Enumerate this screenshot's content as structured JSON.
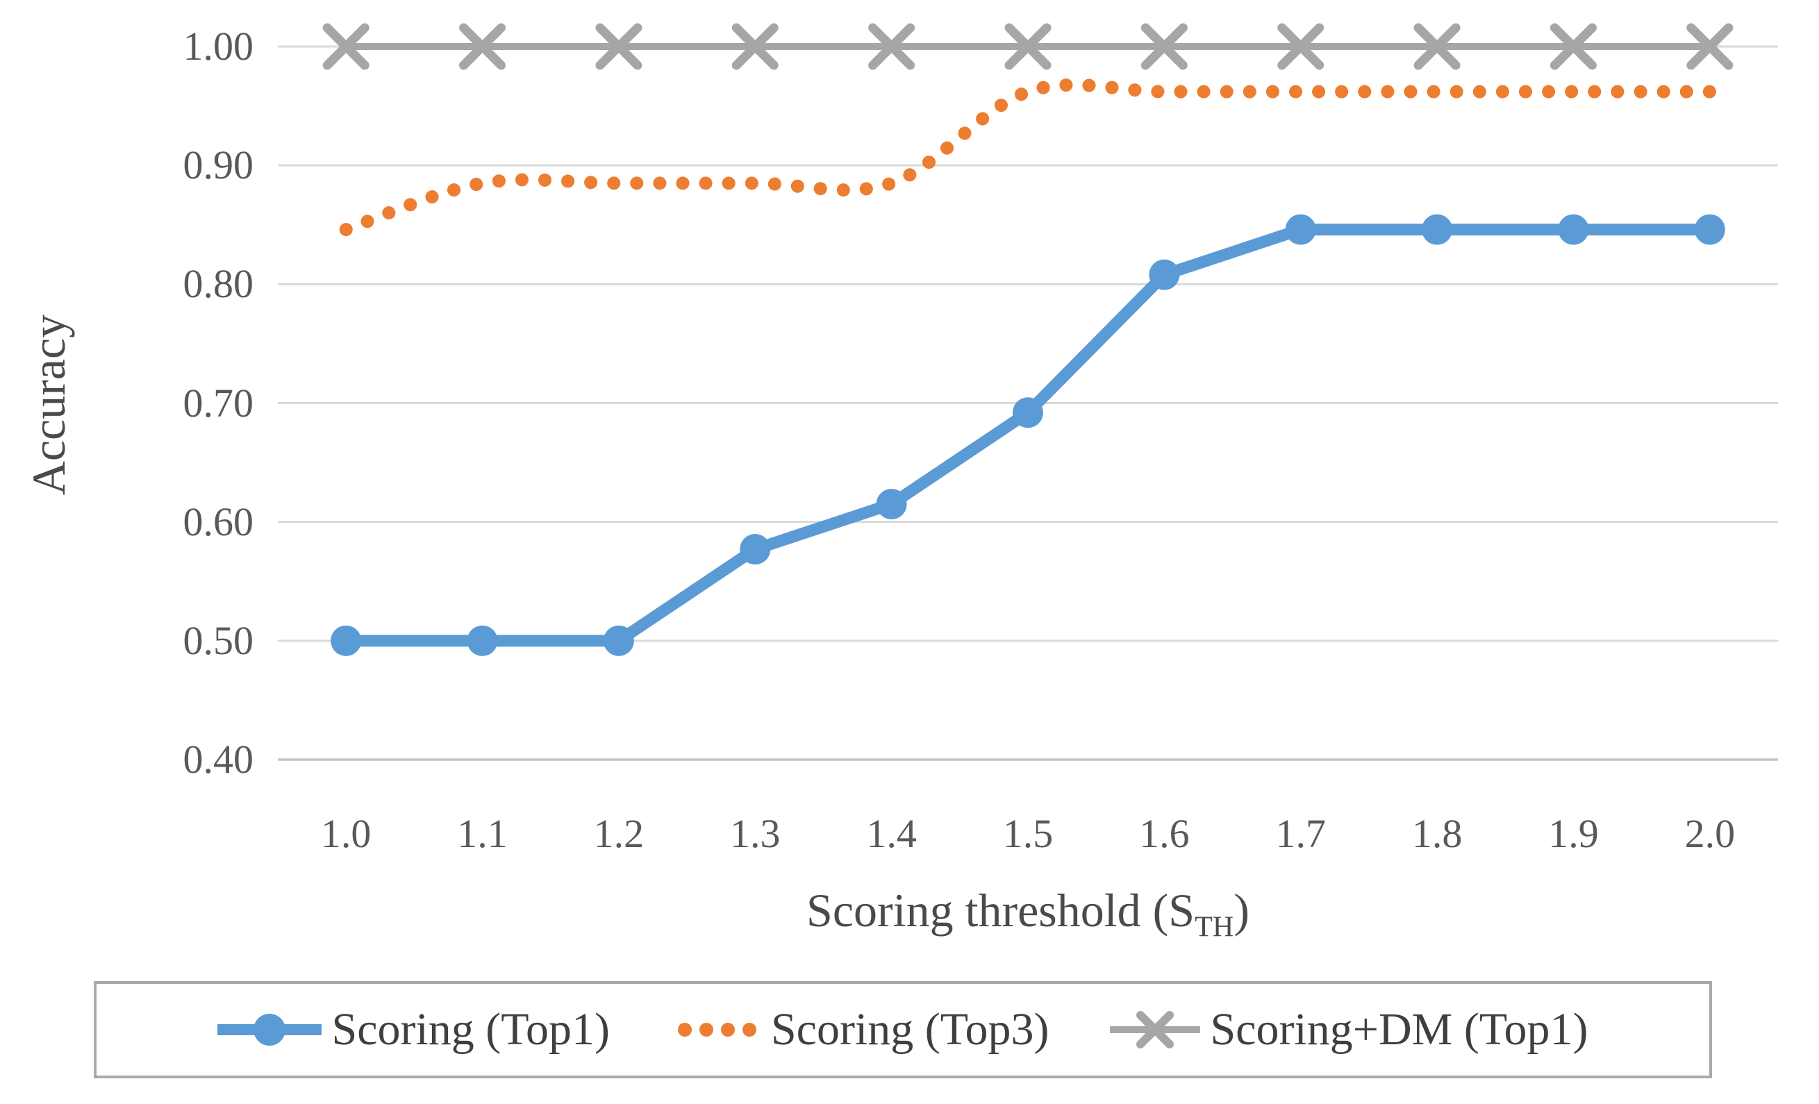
{
  "colors": {
    "background": "#ffffff",
    "gridline": "#D9D9D9",
    "bottom_gridline": "#C6C6C6",
    "tick_text": "#595959",
    "axis_title_text": "#4A4A4A",
    "legend_text": "#3F3F3F",
    "legend_border": "#A9A9A9",
    "series_blue": "#5B9BD5",
    "series_orange": "#ED7D31",
    "series_gray": "#A6A6A6"
  },
  "axes": {
    "ylabel": "Accuracy",
    "xlabel_prefix": "Scoring threshold (S",
    "xlabel_sub": "TH",
    "xlabel_suffix": ")"
  },
  "chart_data": {
    "type": "line",
    "xlabel": "Scoring threshold (S_TH)",
    "ylabel": "Accuracy",
    "x_categories": [
      "1.0",
      "1.1",
      "1.2",
      "1.3",
      "1.4",
      "1.5",
      "1.6",
      "1.7",
      "1.8",
      "1.9",
      "2.0"
    ],
    "ylim": [
      0.4,
      1.0
    ],
    "yticks": [
      {
        "value": 0.4,
        "label": "0.40"
      },
      {
        "value": 0.5,
        "label": "0.50"
      },
      {
        "value": 0.6,
        "label": "0.60"
      },
      {
        "value": 0.7,
        "label": "0.70"
      },
      {
        "value": 0.8,
        "label": "0.80"
      },
      {
        "value": 0.9,
        "label": "0.90"
      },
      {
        "value": 1.0,
        "label": "1.00"
      }
    ],
    "grid": true,
    "legend_position": "bottom",
    "series": [
      {
        "name": "Scoring (Top1)",
        "color": "#5B9BD5",
        "line": "solid",
        "marker": "circle",
        "smooth": false,
        "values": [
          0.5,
          0.5,
          0.5,
          0.577,
          0.615,
          0.692,
          0.808,
          0.846,
          0.846,
          0.846,
          0.846
        ]
      },
      {
        "name": "Scoring (Top3)",
        "color": "#ED7D31",
        "line": "dotted",
        "marker": "none",
        "smooth": true,
        "values": [
          0.846,
          0.885,
          0.885,
          0.885,
          0.885,
          0.962,
          0.962,
          0.962,
          0.962,
          0.962,
          0.962
        ]
      },
      {
        "name": "Scoring+DM (Top1)",
        "color": "#A6A6A6",
        "line": "solid",
        "marker": "x",
        "smooth": false,
        "values": [
          1.0,
          1.0,
          1.0,
          1.0,
          1.0,
          1.0,
          1.0,
          1.0,
          1.0,
          1.0,
          1.0
        ]
      }
    ]
  }
}
